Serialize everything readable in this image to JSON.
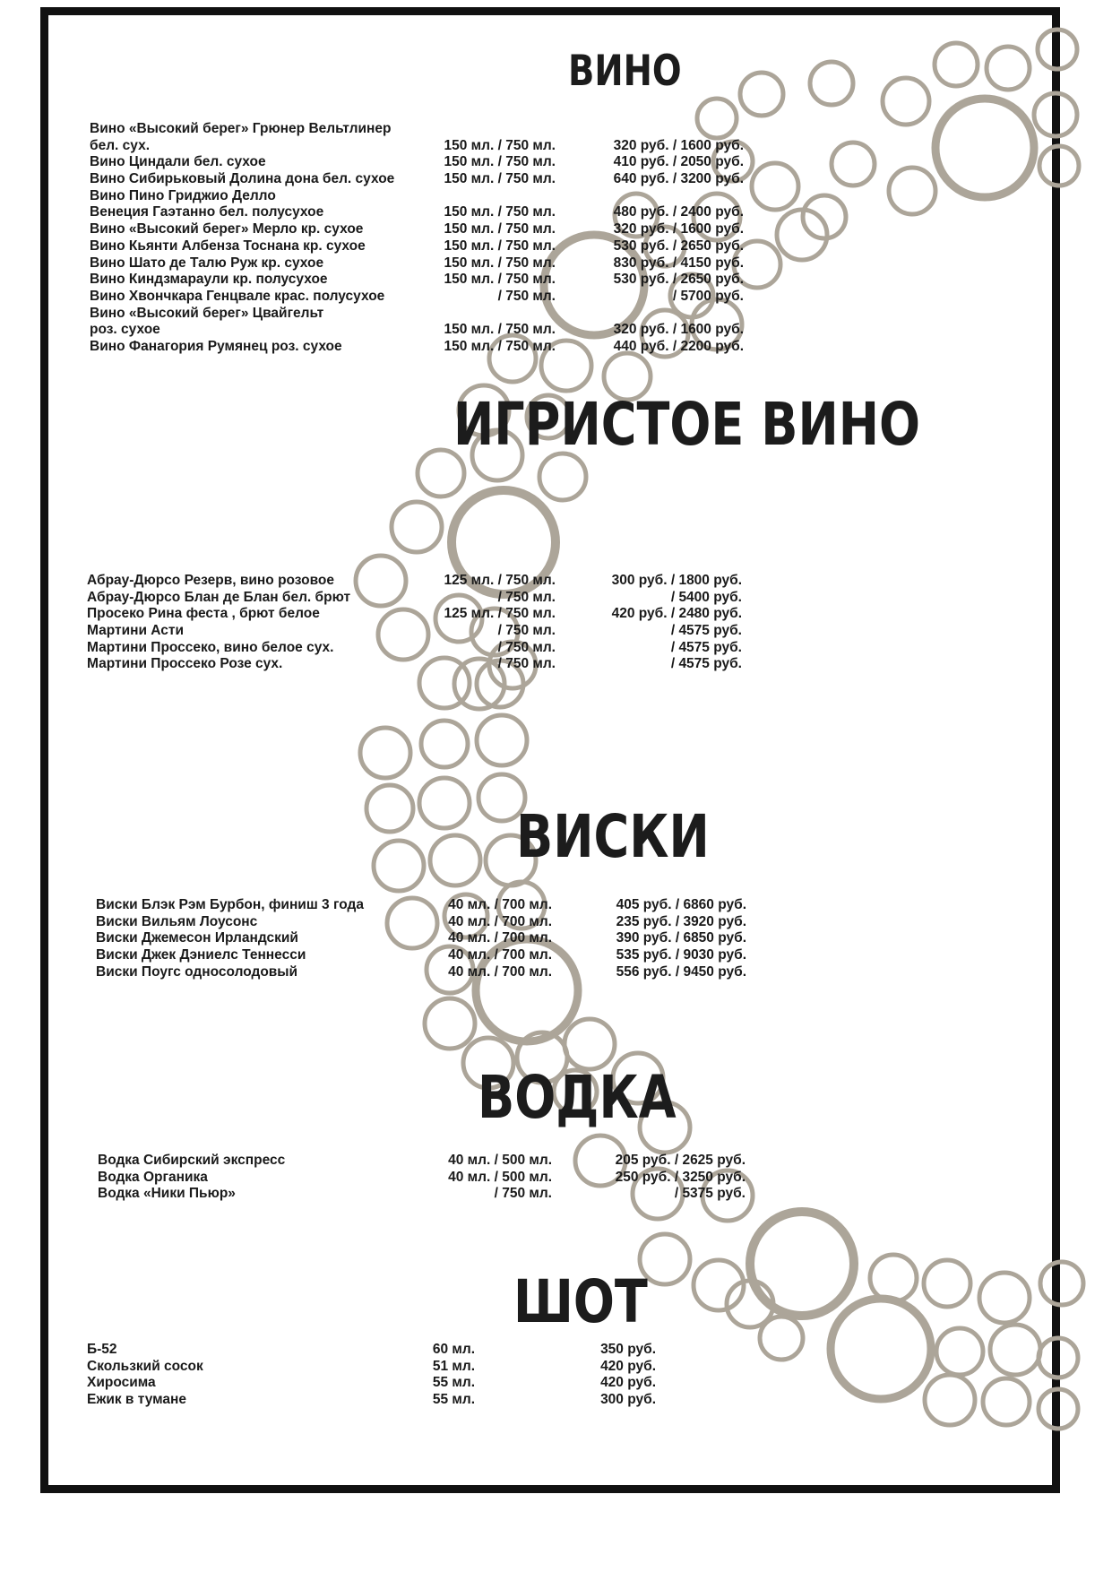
{
  "sections": {
    "wine": {
      "title": "ВИНО",
      "rows": [
        {
          "name": "Вино «Высокий берег» Грюнер Вельтлинер",
          "volume": "",
          "price": ""
        },
        {
          "name": "бел. сух.",
          "volume": "150 мл. / 750 мл.",
          "price": "320 руб. / 1600 руб."
        },
        {
          "name": "Вино Циндали бел. сухое",
          "volume": "150 мл. / 750 мл.",
          "price": "410 руб. / 2050 руб."
        },
        {
          "name": "Вино Сибирьковый Долина дона бел. сухое",
          "volume": "150 мл. / 750 мл.",
          "price": "640 руб. / 3200 руб."
        },
        {
          "name": "Вино Пино Гриджио Делло",
          "volume": "",
          "price": ""
        },
        {
          "name": "Венеция Гаэтанно бел. полусухое",
          "volume": "150 мл. / 750 мл.",
          "price": "480 руб. / 2400 руб."
        },
        {
          "name": "Вино «Высокий берег» Мерло кр. сухое",
          "volume": "150 мл. / 750 мл.",
          "price": "320 руб. / 1600 руб."
        },
        {
          "name": "Вино Кьянти Албенза Тоснана  кр. сухое",
          "volume": "150 мл. / 750 мл.",
          "price": "530 руб. / 2650 руб."
        },
        {
          "name": "Вино Шато де Талю Руж кр. сухое",
          "volume": "150 мл. / 750 мл.",
          "price": "830 руб. / 4150 руб."
        },
        {
          "name": "Вино Киндзмараули  кр. полусухое",
          "volume": "150 мл. / 750 мл.",
          "price": "530 руб. / 2650 руб."
        },
        {
          "name": "Вино Хвончкара Генцвале крас. полусухое",
          "volume": "/ 750 мл.",
          "price": "/ 5700 руб."
        },
        {
          "name": "Вино «Высокий берег» Цвайгельт",
          "volume": "",
          "price": ""
        },
        {
          "name": "роз. сухое",
          "volume": "150 мл. / 750 мл.",
          "price": "320 руб. / 1600 руб."
        },
        {
          "name": "Вино Фанагория Румянец  роз. сухое",
          "volume": "150 мл. / 750 мл.",
          "price": "440 руб. / 2200 руб."
        }
      ]
    },
    "sparkling": {
      "title": "ИГРИСТОЕ ВИНО",
      "rows": [
        {
          "name": "Абрау-Дюрсо Резерв, вино розовое",
          "volume": "125 мл. / 750 мл.",
          "price": "300 руб. / 1800 руб."
        },
        {
          "name": "Абрау-Дюрсо Блан де Блан бел. брют",
          "volume": "/ 750 мл.",
          "price": "/ 5400 руб."
        },
        {
          "name": "Просеко Рина феста , брют белое",
          "volume": "125 мл. / 750 мл.",
          "price": "420 руб. / 2480 руб."
        },
        {
          "name": "Мартини Асти",
          "volume": "/ 750 мл.",
          "price": "/ 4575 руб."
        },
        {
          "name": "Мартини Проссеко, вино белое сух.",
          "volume": "/ 750 мл.",
          "price": "/ 4575 руб."
        },
        {
          "name": "Мартини Проссеко Розе сух.",
          "volume": "/ 750 мл.",
          "price": "/ 4575 руб."
        }
      ]
    },
    "whisky": {
      "title": "ВИСКИ",
      "rows": [
        {
          "name": "Виски Блэк Рэм Бурбон, финиш 3 года",
          "volume": "40 мл. / 700 мл.",
          "price": "405 руб. / 6860 руб."
        },
        {
          "name": "Виски Вильям Лоусонс",
          "volume": "40 мл. / 700 мл.",
          "price": "235 руб. / 3920 руб."
        },
        {
          "name": "Виски Джемесон Ирландский",
          "volume": "40 мл. / 700 мл.",
          "price": "390 руб. / 6850 руб."
        },
        {
          "name": "Виски Джек Дэниелс Теннесси",
          "volume": "40 мл. / 700 мл.",
          "price": "535 руб. / 9030 руб."
        },
        {
          "name": "Виски Поугс односолодовый",
          "volume": "40 мл. / 700 мл.",
          "price": "556 руб. / 9450 руб."
        }
      ]
    },
    "vodka": {
      "title": "ВОДКА",
      "rows": [
        {
          "name": "Водка Сибирский экспресс",
          "volume": "40 мл. / 500 мл.",
          "price": "205 руб. / 2625 руб."
        },
        {
          "name": "Водка Органика",
          "volume": "40 мл. / 500 мл.",
          "price": "250 руб. / 3250 руб."
        },
        {
          "name": "Водка «Ники Пьюр»",
          "volume": "/ 750 мл.",
          "price": "/ 5375 руб."
        }
      ]
    },
    "shot": {
      "title": "ШОТ",
      "rows": [
        {
          "name": "Б-52",
          "volume": "60 мл.",
          "price": "350 руб."
        },
        {
          "name": "Скользкий сосок",
          "volume": "51 мл.",
          "price": "420 руб."
        },
        {
          "name": "Хиросима",
          "volume": "55 мл.",
          "price": "420 руб."
        },
        {
          "name": "Ежик в тумане",
          "volume": "55 мл.",
          "price": "300 руб."
        }
      ]
    }
  },
  "colors": {
    "ring": "#aca599",
    "frame": "#111111",
    "text": "#1a1a1a"
  }
}
